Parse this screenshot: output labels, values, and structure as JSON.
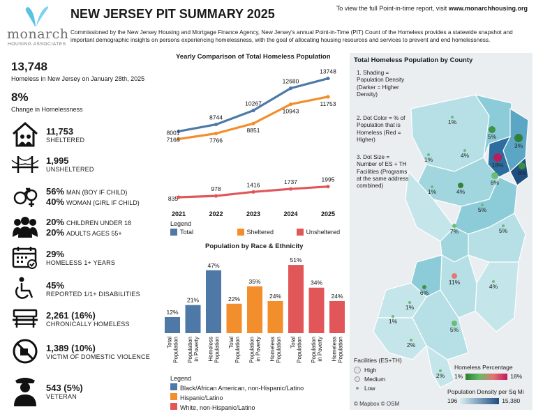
{
  "header": {
    "title": "NEW JERSEY PIT SUMMARY 2025",
    "visit_text": "To view the full Point-in-time report, visit",
    "visit_url": "www.monarchhousing.org",
    "commission": "Commissioned by the New Jersey Housing and Mortgage Finance Agency, New Jersey's annual Point-in-Time (PIT) Count of the Homeless provides a statewide snapshot and important demographic insights on persons experiencing homelessness, with the goal of allocating housing resources and services to prevent and end homelessness."
  },
  "logo": {
    "name": "monarch",
    "sub": "HOUSING ASSOCIATES",
    "icon": "butterfly-icon",
    "color": "#5bc2e7"
  },
  "stats": {
    "total": "13,748",
    "total_label": "Homeless in New Jersey on January 28th, 2025",
    "change": "8%",
    "change_label": "Change in Homelessness",
    "sheltered": "11,753",
    "sheltered_label": "SHELTERED",
    "unsheltered": "1,995",
    "unsheltered_label": "UNSHELTERED",
    "man_pct": "56%",
    "man_label": "MAN (BOY IF CHILD)",
    "woman_pct": "40%",
    "woman_label": "WOMAN (GIRL IF CHILD)",
    "children_pct": "20%",
    "children_label": "CHILDREN UNDER 18",
    "adults_pct": "20%",
    "adults_label": "ADULTS AGES 55+",
    "years_pct": "29%",
    "years_label": "HOMELESS 1+ YEARS",
    "disab_pct": "45%",
    "disab_label": "REPORTED 1/1+ DISABILITIES",
    "chronic": "2,261 (16%)",
    "chronic_label": "CHRONICALLY HOMELESS",
    "dv": "1,389 (10%)",
    "dv_label": "VICTIM OF DOMESTIC VIOLENCE",
    "veteran": "543 (5%)",
    "veteran_label": "VETERAN"
  },
  "chart_data": [
    {
      "type": "line",
      "title": "Yearly Comparison of Total Homeless Population",
      "x": [
        "2021",
        "2022",
        "2023",
        "2024",
        "2025"
      ],
      "series": [
        {
          "name": "Total",
          "values": [
            8001,
            8744,
            10267,
            12680,
            13748
          ],
          "color": "#4e79a7"
        },
        {
          "name": "Sheltered",
          "values": [
            7166,
            7766,
            8851,
            10943,
            11753
          ],
          "color": "#f28e2b"
        },
        {
          "name": "Unsheltered",
          "values": [
            835,
            978,
            1416,
            1737,
            1995
          ],
          "color": "#e15759"
        }
      ],
      "legend_title": "Legend",
      "legend_position": "bottom"
    },
    {
      "type": "bar",
      "title": "Population by Race & Ethnicity",
      "categories": [
        "Total Population",
        "Population in Poverty",
        "Homeless Population"
      ],
      "series": [
        {
          "name": "Black/African American, non-Hispanic/Latino",
          "values": [
            12,
            21,
            47
          ],
          "color": "#4e79a7"
        },
        {
          "name": "Hispanic/Latino",
          "values": [
            22,
            35,
            24
          ],
          "color": "#f28e2b"
        },
        {
          "name": "White, non-Hispanic/Latino",
          "values": [
            51,
            34,
            24
          ],
          "color": "#e15759"
        }
      ],
      "value_suffix": "%",
      "legend_title": "Legend",
      "legend_position": "bottom"
    }
  ],
  "map": {
    "title": "Total Homeless Population by County",
    "notes": [
      "1. Shading = Population Density (Darker = Higher Density)",
      "2. Dot Color = % of Population that is Homeless (Red = Higher)",
      "3. Dot Size = Number of ES + TH Facilities (Programs at the same address combined)"
    ],
    "county_labels": [
      "1%",
      "1%",
      "4%",
      "5%",
      "3%",
      "18%",
      "8%",
      "8%",
      "1%",
      "4%",
      "5%",
      "7%",
      "5%",
      "6%",
      "11%",
      "4%",
      "1%",
      "1%",
      "5%",
      "2%",
      "2%"
    ],
    "facilities_title": "Facilities (ES+TH)",
    "facilities": [
      "High",
      "Medium",
      "Low"
    ],
    "homeless_pct_title": "Homeless Percentage",
    "homeless_pct_min": "1%",
    "homeless_pct_max": "18%",
    "density_title": "Population Density per Sq Mi",
    "density_min": "196",
    "density_max": "15,380",
    "attribution": "© Mapbox © OSM"
  }
}
